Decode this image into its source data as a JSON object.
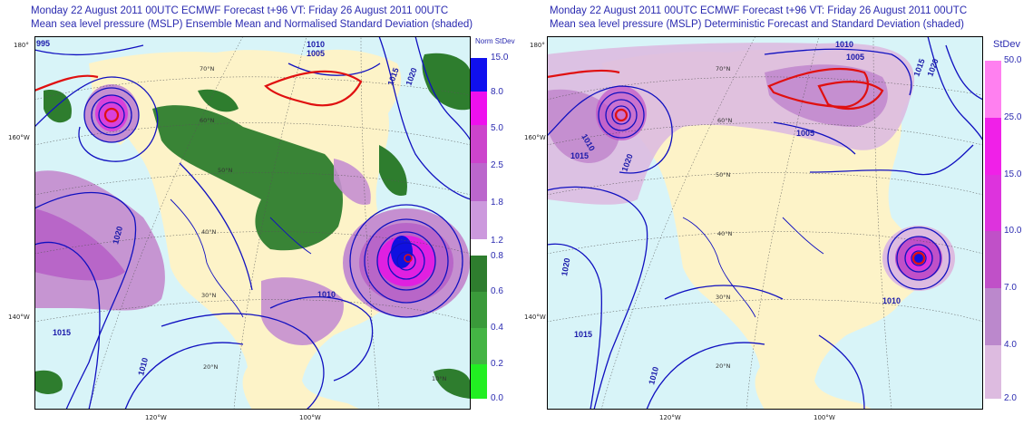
{
  "left_panel": {
    "title_line1": "Monday 22 August 2011 00UTC ECMWF Forecast t+96  VT: Friday 26 August 2011 00UTC",
    "title_line2": "Mean sea level pressure (MSLP) Ensemble Mean and Normalised Standard Deviation (shaded)",
    "legend_title": "Norm StDev",
    "legend_ticks": [
      "15.0",
      "8.0",
      "5.0",
      "2.5",
      "1.8",
      "1.2",
      "0.8",
      "0.6",
      "0.4",
      "0.2",
      "0.0"
    ],
    "isobar_labels": [
      "995",
      "1010",
      "1005",
      "1015",
      "1020",
      "1010",
      "1015",
      "1010",
      "1010"
    ],
    "lat_labels_left": [
      "180°",
      "160°W",
      "140°W"
    ],
    "lon_labels_bottom": [
      "120°W",
      "100°W"
    ],
    "grid_labels": [
      "70°N",
      "60°N",
      "50°N",
      "40°N",
      "30°N",
      "20°N",
      "10°N"
    ]
  },
  "right_panel": {
    "title_line1": "Monday 22 August 2011 00UTC ECMWF Forecast t+96  VT: Friday 26 August 2011 00UTC",
    "title_line2": "Mean sea level pressure (MSLP) Deterministic Forecast and Standard Deviation (shaded)",
    "legend_title": "StDev",
    "legend_ticks": [
      "50.0",
      "25.0",
      "15.0",
      "10.0",
      "7.0",
      "4.0",
      "2.0"
    ],
    "isobar_labels": [
      "1010",
      "1005",
      "1015",
      "1020",
      "1010",
      "1005",
      "1015",
      "1020",
      "1015",
      "1010",
      "1010"
    ],
    "lat_labels_left": [
      "180°",
      "160°W",
      "140°W"
    ],
    "lon_labels_bottom": [
      "120°W",
      "100°W"
    ],
    "grid_labels": [
      "70°N",
      "60°N",
      "50°N",
      "40°N",
      "30°N",
      "20°N"
    ]
  },
  "colors": {
    "ocean": "#d8f4f8",
    "land": "#fdf3c8",
    "isobar": "#1010c0",
    "isobar_red": "#e01010",
    "green_dark": "#2e7d2e",
    "purple_light": "#c58fd0",
    "purple_mid": "#b866c8",
    "magenta": "#e020e0",
    "blue_core": "#1010e0",
    "left_scale": [
      "#1010ee",
      "#ee10ee",
      "#cc44cc",
      "#bb66cc",
      "#cc99dd",
      "#ffffff",
      "#2e7d2e",
      "#3a9a3a",
      "#44b444",
      "#33cc33",
      "#22ee22"
    ],
    "right_scale": [
      "#ff80f0",
      "#f020e8",
      "#dd33dd",
      "#c050c8",
      "#bb88cc",
      "#ddbbe0"
    ]
  }
}
